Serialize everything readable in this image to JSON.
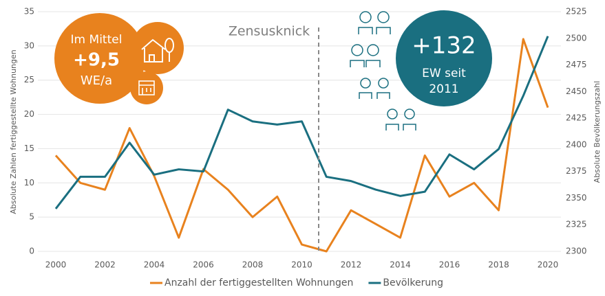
{
  "chart_data": {
    "type": "line",
    "x": [
      2000,
      2001,
      2002,
      2003,
      2004,
      2005,
      2006,
      2007,
      2008,
      2009,
      2010,
      2011,
      2012,
      2013,
      2014,
      2015,
      2016,
      2017,
      2018,
      2019,
      2020
    ],
    "series": [
      {
        "name": "Anzahl der fertiggestellten Wohnungen",
        "color": "#e8821e",
        "values": [
          14,
          10,
          9,
          18,
          11,
          2,
          12,
          9,
          5,
          8,
          1,
          0,
          6,
          4,
          2,
          14,
          8,
          10,
          6,
          31,
          21
        ]
      },
      {
        "name": "Bevölkerung",
        "color": "#1a6f80",
        "axis": "y2",
        "values": [
          2340,
          2370,
          2370,
          2402,
          2372,
          2377,
          2375,
          2433,
          2422,
          2419,
          2422,
          2370,
          2366,
          2358,
          2352,
          2356,
          2391,
          2377,
          2396,
          2446,
          2502
        ]
      }
    ],
    "xlim": [
      2000,
      2020
    ],
    "xticks": [
      2000,
      2002,
      2004,
      2006,
      2008,
      2010,
      2012,
      2014,
      2016,
      2018,
      2020
    ],
    "ylim": [
      0,
      35
    ],
    "yticks": [
      0,
      5,
      10,
      15,
      20,
      25,
      30,
      35
    ],
    "y2lim": [
      2300,
      2525
    ],
    "y2ticks": [
      2300,
      2325,
      2350,
      2375,
      2400,
      2425,
      2450,
      2475,
      2500,
      2525
    ],
    "ylabel": "Absolute Zahlen fertiggestellte Wohnungen",
    "y2label": "Absolute Bevölkerungszahl",
    "grid": true,
    "legend": "bottom",
    "annotations": {
      "zensus": "Zensusknick",
      "mittel_head": "Im Mittel",
      "mittel_value": "+9,5",
      "mittel_unit": "WE/a",
      "ew_value": "+132",
      "ew_text1": "EW seit",
      "ew_text2": "2011"
    }
  }
}
